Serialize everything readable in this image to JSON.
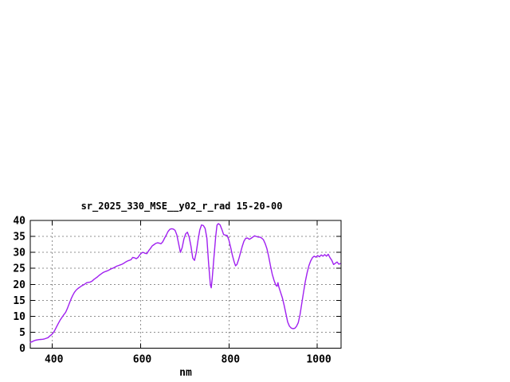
{
  "window": {
    "background": "#ffffff"
  },
  "chart_data": {
    "type": "line",
    "title": "sr_2025_330_MSE__y02_r_rad 15-20-00",
    "xlabel": "nm",
    "ylabel": "",
    "xlim": [
      350,
      1054
    ],
    "ylim": [
      0,
      40
    ],
    "xticks": [
      400,
      600,
      800,
      1000
    ],
    "yticks": [
      0,
      5,
      10,
      15,
      20,
      25,
      30,
      35,
      40
    ],
    "grid": true,
    "legend": false,
    "colors": {
      "line": "#a020f0",
      "grid": "#909090",
      "axis": "#000000",
      "text": "#000000",
      "background": "#ffffff"
    },
    "series": [
      {
        "name": "sr_2025_330_MSE__y02_r_rad",
        "color": "#a020f0",
        "points": [
          [
            350,
            1.9
          ],
          [
            354,
            2.0
          ],
          [
            358,
            2.3
          ],
          [
            362,
            2.5
          ],
          [
            366,
            2.6
          ],
          [
            370,
            2.7
          ],
          [
            374,
            2.75
          ],
          [
            378,
            2.8
          ],
          [
            382,
            2.9
          ],
          [
            386,
            3.1
          ],
          [
            390,
            3.3
          ],
          [
            394,
            3.8
          ],
          [
            398,
            4.2
          ],
          [
            402,
            4.8
          ],
          [
            406,
            5.7
          ],
          [
            410,
            6.8
          ],
          [
            414,
            7.9
          ],
          [
            418,
            8.9
          ],
          [
            422,
            9.7
          ],
          [
            426,
            10.5
          ],
          [
            430,
            11.2
          ],
          [
            434,
            12.4
          ],
          [
            438,
            13.9
          ],
          [
            442,
            15.3
          ],
          [
            446,
            16.5
          ],
          [
            450,
            17.5
          ],
          [
            454,
            18.2
          ],
          [
            458,
            18.7
          ],
          [
            462,
            19.1
          ],
          [
            466,
            19.5
          ],
          [
            470,
            19.8
          ],
          [
            474,
            20.1
          ],
          [
            478,
            20.5
          ],
          [
            482,
            20.6
          ],
          [
            486,
            20.7
          ],
          [
            490,
            21.0
          ],
          [
            494,
            21.5
          ],
          [
            498,
            21.9
          ],
          [
            502,
            22.3
          ],
          [
            506,
            22.8
          ],
          [
            510,
            23.2
          ],
          [
            514,
            23.6
          ],
          [
            518,
            23.9
          ],
          [
            522,
            24.1
          ],
          [
            526,
            24.3
          ],
          [
            530,
            24.6
          ],
          [
            534,
            24.9
          ],
          [
            538,
            25.1
          ],
          [
            542,
            25.4
          ],
          [
            546,
            25.7
          ],
          [
            550,
            25.9
          ],
          [
            554,
            26.1
          ],
          [
            558,
            26.3
          ],
          [
            562,
            26.6
          ],
          [
            566,
            27.0
          ],
          [
            570,
            27.3
          ],
          [
            574,
            27.5
          ],
          [
            578,
            27.7
          ],
          [
            582,
            28.4
          ],
          [
            586,
            28.3
          ],
          [
            590,
            28.0
          ],
          [
            594,
            28.4
          ],
          [
            598,
            29.2
          ],
          [
            602,
            29.8
          ],
          [
            606,
            30.0
          ],
          [
            610,
            29.7
          ],
          [
            614,
            29.6
          ],
          [
            618,
            30.5
          ],
          [
            622,
            31.2
          ],
          [
            626,
            32.0
          ],
          [
            630,
            32.4
          ],
          [
            634,
            32.8
          ],
          [
            638,
            33.0
          ],
          [
            642,
            32.9
          ],
          [
            646,
            32.7
          ],
          [
            650,
            33.3
          ],
          [
            654,
            34.4
          ],
          [
            658,
            35.4
          ],
          [
            662,
            36.5
          ],
          [
            666,
            37.2
          ],
          [
            670,
            37.4
          ],
          [
            674,
            37.3
          ],
          [
            678,
            36.9
          ],
          [
            682,
            35.5
          ],
          [
            686,
            32.8
          ],
          [
            690,
            30.0
          ],
          [
            694,
            31.5
          ],
          [
            698,
            34.2
          ],
          [
            702,
            35.8
          ],
          [
            706,
            36.3
          ],
          [
            710,
            34.8
          ],
          [
            714,
            32.0
          ],
          [
            718,
            28.2
          ],
          [
            722,
            27.5
          ],
          [
            726,
            30.0
          ],
          [
            730,
            33.8
          ],
          [
            734,
            37.0
          ],
          [
            738,
            38.6
          ],
          [
            742,
            38.4
          ],
          [
            746,
            37.5
          ],
          [
            750,
            34.5
          ],
          [
            754,
            26.5
          ],
          [
            758,
            19.8
          ],
          [
            760,
            18.9
          ],
          [
            762,
            21.5
          ],
          [
            766,
            28.5
          ],
          [
            770,
            35.0
          ],
          [
            773,
            38.5
          ],
          [
            776,
            39.0
          ],
          [
            780,
            38.6
          ],
          [
            784,
            37.2
          ],
          [
            788,
            35.6
          ],
          [
            792,
            35.4
          ],
          [
            796,
            35.3
          ],
          [
            800,
            33.8
          ],
          [
            804,
            31.5
          ],
          [
            808,
            29.0
          ],
          [
            812,
            27.0
          ],
          [
            815,
            25.8
          ],
          [
            818,
            26.2
          ],
          [
            822,
            27.8
          ],
          [
            826,
            29.8
          ],
          [
            830,
            31.8
          ],
          [
            834,
            33.5
          ],
          [
            838,
            34.4
          ],
          [
            842,
            34.5
          ],
          [
            846,
            34.1
          ],
          [
            850,
            34.4
          ],
          [
            854,
            34.8
          ],
          [
            858,
            35.2
          ],
          [
            862,
            35.0
          ],
          [
            866,
            34.8
          ],
          [
            870,
            34.8
          ],
          [
            874,
            34.5
          ],
          [
            878,
            34.0
          ],
          [
            882,
            32.8
          ],
          [
            886,
            31.2
          ],
          [
            890,
            28.8
          ],
          [
            894,
            25.8
          ],
          [
            898,
            23.2
          ],
          [
            902,
            21.3
          ],
          [
            906,
            19.8
          ],
          [
            909,
            19.4
          ],
          [
            911,
            20.5
          ],
          [
            913,
            19.2
          ],
          [
            917,
            17.5
          ],
          [
            921,
            15.8
          ],
          [
            925,
            13.5
          ],
          [
            929,
            10.8
          ],
          [
            933,
            8.2
          ],
          [
            937,
            6.9
          ],
          [
            941,
            6.3
          ],
          [
            945,
            6.1
          ],
          [
            949,
            6.2
          ],
          [
            953,
            6.8
          ],
          [
            957,
            8.0
          ],
          [
            961,
            10.5
          ],
          [
            965,
            14.0
          ],
          [
            969,
            17.5
          ],
          [
            973,
            20.8
          ],
          [
            977,
            23.5
          ],
          [
            981,
            25.8
          ],
          [
            985,
            27.3
          ],
          [
            989,
            28.3
          ],
          [
            993,
            28.8
          ],
          [
            997,
            28.5
          ],
          [
            1001,
            29.0
          ],
          [
            1005,
            28.6
          ],
          [
            1009,
            29.2
          ],
          [
            1013,
            28.8
          ],
          [
            1017,
            29.3
          ],
          [
            1021,
            28.8
          ],
          [
            1025,
            29.4
          ],
          [
            1029,
            28.3
          ],
          [
            1033,
            27.5
          ],
          [
            1037,
            26.2
          ],
          [
            1041,
            26.6
          ],
          [
            1045,
            27.0
          ],
          [
            1049,
            26.3
          ],
          [
            1052,
            26.5
          ]
        ]
      }
    ]
  }
}
